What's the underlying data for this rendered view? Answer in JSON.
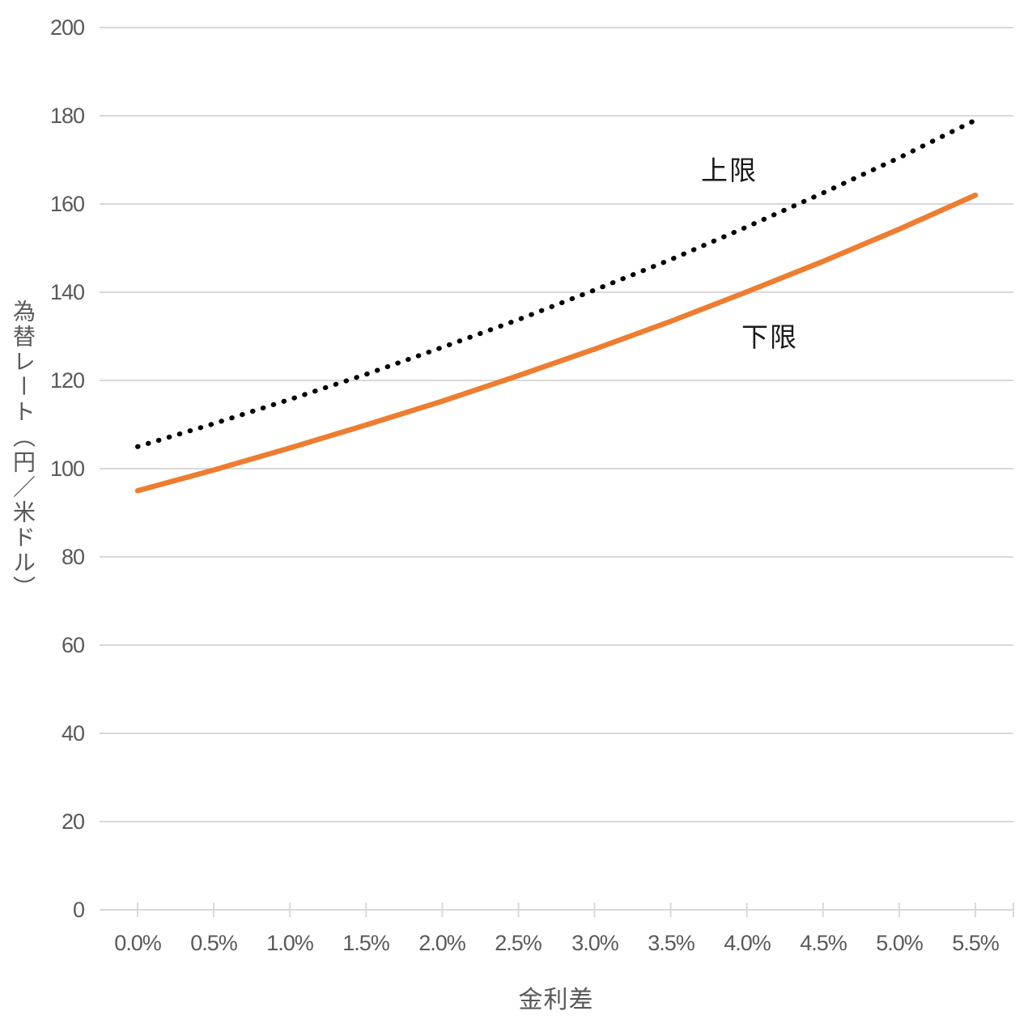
{
  "chart_data": {
    "type": "line",
    "title": "",
    "categories": [
      "0.0%",
      "0.5%",
      "1.0%",
      "1.5%",
      "2.0%",
      "2.5%",
      "3.0%",
      "3.5%",
      "4.0%",
      "4.5%",
      "5.0%",
      "5.5%"
    ],
    "y_tick_labels": [
      "0",
      "20",
      "40",
      "60",
      "80",
      "100",
      "120",
      "140",
      "160",
      "180",
      "200"
    ],
    "series": [
      {
        "name": "上限",
        "style": "dotted",
        "color": "#000000",
        "values": [
          105,
          110.2,
          115.7,
          121.4,
          127.5,
          133.8,
          140.5,
          147.4,
          154.8,
          162.5,
          170.5,
          179
        ]
      },
      {
        "name": "下限",
        "style": "solid",
        "color": "#ED7D31",
        "values": [
          95,
          99.7,
          104.7,
          109.9,
          115.3,
          121.1,
          127.1,
          133.4,
          140.1,
          147.0,
          154.3,
          162
        ]
      }
    ],
    "xlabel": "金利差",
    "ylabel": "為替レート（円／米ドル）",
    "ylim": [
      0,
      200
    ],
    "y_tick_step": 20,
    "grid": "horizontal",
    "legend": "none",
    "colors": {
      "grid": "#D9D9D9",
      "axis_text": "#595959",
      "series_label_text": "#1A1A1A",
      "background": "#FFFFFF"
    }
  }
}
